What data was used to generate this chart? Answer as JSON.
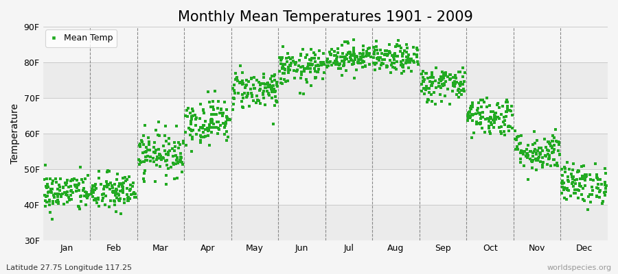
{
  "title": "Monthly Mean Temperatures 1901 - 2009",
  "ylabel": "Temperature",
  "xlabel_bottom_left": "Latitude 27.75 Longitude 117.25",
  "xlabel_bottom_right": "worldspecies.org",
  "ylim": [
    30,
    90
  ],
  "yticks": [
    30,
    40,
    50,
    60,
    70,
    80,
    90
  ],
  "ytick_labels": [
    "30F",
    "40F",
    "50F",
    "60F",
    "70F",
    "80F",
    "90F"
  ],
  "months": [
    "Jan",
    "Feb",
    "Mar",
    "Apr",
    "May",
    "Jun",
    "Jul",
    "Aug",
    "Sep",
    "Oct",
    "Nov",
    "Dec"
  ],
  "dot_color": "#22aa22",
  "bg_color": "#f5f5f5",
  "plot_bg_color": "#ffffff",
  "stripe_colors": [
    "#ebebeb",
    "#f5f5f5"
  ],
  "legend_label": "Mean Temp",
  "monthly_means": [
    43.5,
    43.5,
    54.5,
    63.5,
    72.5,
    78.5,
    81.5,
    81.0,
    74.0,
    65.0,
    55.0,
    46.0
  ],
  "monthly_std": [
    2.8,
    2.8,
    3.2,
    3.2,
    2.8,
    2.5,
    2.0,
    2.0,
    2.5,
    2.8,
    2.8,
    2.8
  ],
  "n_years": 109,
  "seed": 42,
  "title_fontsize": 15,
  "axis_fontsize": 10,
  "tick_fontsize": 9,
  "legend_fontsize": 9,
  "marker_size": 5
}
